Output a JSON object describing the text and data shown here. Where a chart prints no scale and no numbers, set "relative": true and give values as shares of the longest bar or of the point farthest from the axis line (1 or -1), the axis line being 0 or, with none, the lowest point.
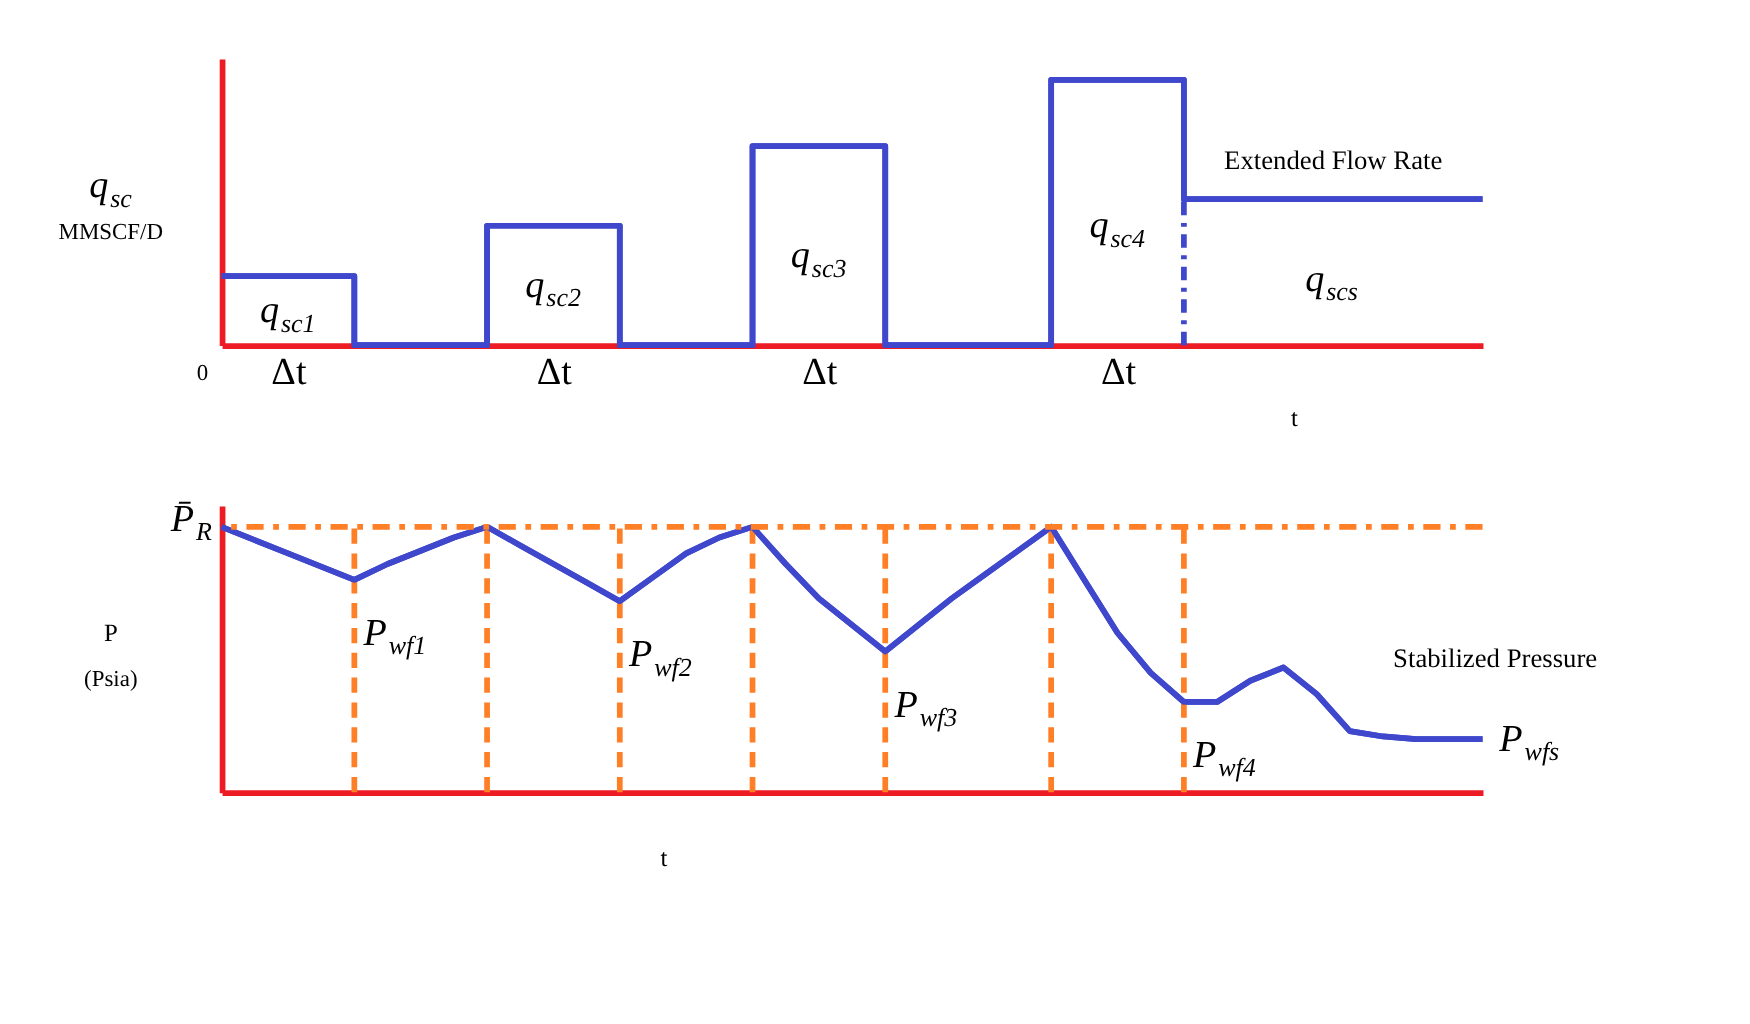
{
  "chart_data": [
    {
      "type": "step",
      "relative": true,
      "ylabel": "q$_{sc}$ MMSCF/D",
      "xlabel": "t",
      "categories": [
        null,
        null,
        "Δt",
        null,
        null,
        null,
        null,
        null,
        null,
        null,
        "Δt",
        null,
        null,
        null,
        null,
        null,
        null,
        null,
        "Δt",
        null,
        null,
        null,
        null,
        null,
        null,
        null,
        null,
        "Δt",
        null,
        null,
        null,
        null,
        null,
        null,
        null,
        null,
        null,
        null,
        null
      ],
      "values": [
        0.26,
        0.26,
        0.26,
        0.26,
        0,
        0,
        0,
        0,
        0.45,
        0.45,
        0.45,
        0.45,
        0,
        0,
        0,
        0,
        0.75,
        0.75,
        0.75,
        0.75,
        0,
        0,
        0,
        0,
        0,
        1,
        1,
        1,
        1,
        0.55,
        0.55,
        0.55,
        0.55,
        0.55,
        0.55,
        0.55,
        0.55,
        0.55,
        0.55
      ],
      "color": "#3f48cc",
      "tick_labels": "x",
      "grid": false,
      "line_style": "solid",
      "annotations": [
        "q$_{sc1}$",
        "q$_{sc2}$",
        "q$_{sc3}$",
        "q$_{sc4}$",
        "q$_{scs}$",
        "Extended Flow Rate",
        "0"
      ]
    },
    {
      "type": "line",
      "relative": true,
      "ylabel": "P (Psia)",
      "xlabel": "t",
      "tick_labels": false,
      "grid": "x",
      "line_style": "solid",
      "categories": [
        null,
        null,
        null,
        null,
        null,
        null,
        null,
        null,
        null,
        null,
        null,
        null,
        null,
        null,
        null,
        null,
        null,
        null,
        null,
        null,
        null,
        null,
        null,
        null,
        null,
        null,
        null,
        null,
        null,
        null,
        null,
        null,
        null,
        null,
        null,
        null,
        null,
        null,
        null
      ],
      "series": [
        {
          "name": "P$_{wfs}$",
          "color": "#3f48cc",
          "values": [
            1,
            0.95,
            0.9,
            0.85,
            0.8,
            0.86,
            0.91,
            0.96,
            1,
            0.93,
            0.86,
            0.79,
            0.72,
            0.81,
            0.9,
            0.96,
            1,
            0.86,
            0.73,
            0.63,
            0.53,
            0.63,
            0.73,
            0.82,
            0.91,
            1,
            0.8,
            0.6,
            0.45,
            0.34,
            0.34,
            0.42,
            0.47,
            0.37,
            0.23,
            0.21,
            0.2,
            0.2,
            0.2
          ]
        }
      ],
      "annotations": [
        "P̄$_{R}$",
        "P$_{wf1}$",
        "P$_{wf2}$",
        "P$_{wf3}$",
        "P$_{wf4}$",
        "Stabilized Pressure"
      ]
    }
  ]
}
